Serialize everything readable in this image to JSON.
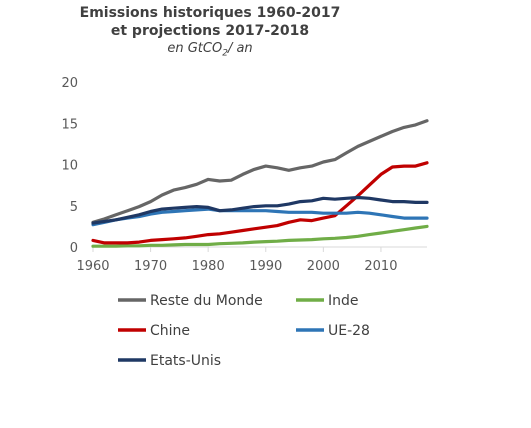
{
  "chart_data": {
    "type": "line",
    "title_line1": "Emissions historiques 1960-2017",
    "title_line2": "et projections 2017-2018",
    "subtitle_prefix": "en GtCO",
    "subtitle_sub": "2",
    "subtitle_suffix": "/ an",
    "xlim": [
      1960,
      2018
    ],
    "ylim": [
      0,
      20
    ],
    "xticks": [
      "1960",
      "1970",
      "1980",
      "1990",
      "2000",
      "2010"
    ],
    "yticks": [
      "0",
      "5",
      "10",
      "15",
      "20"
    ],
    "grid": false,
    "legend_position": "bottom",
    "x": [
      1960,
      1962,
      1964,
      1966,
      1968,
      1970,
      1972,
      1974,
      1976,
      1978,
      1980,
      1982,
      1984,
      1986,
      1988,
      1990,
      1992,
      1994,
      1996,
      1998,
      2000,
      2002,
      2004,
      2006,
      2008,
      2010,
      2012,
      2014,
      2016,
      2018
    ],
    "series": [
      {
        "name": "Reste du Monde",
        "color": "#666666",
        "values": [
          3.0,
          3.4,
          3.9,
          4.4,
          4.9,
          5.5,
          6.3,
          6.9,
          7.2,
          7.6,
          8.2,
          8.0,
          8.1,
          8.8,
          9.4,
          9.8,
          9.6,
          9.3,
          9.6,
          9.8,
          10.3,
          10.6,
          11.4,
          12.2,
          12.8,
          13.4,
          14.0,
          14.5,
          14.8,
          15.3
        ]
      },
      {
        "name": "Inde",
        "color": "#70AD47",
        "values": [
          0.1,
          0.1,
          0.1,
          0.15,
          0.15,
          0.2,
          0.2,
          0.25,
          0.3,
          0.3,
          0.3,
          0.4,
          0.45,
          0.5,
          0.6,
          0.65,
          0.7,
          0.8,
          0.85,
          0.9,
          1.0,
          1.05,
          1.15,
          1.3,
          1.5,
          1.7,
          1.9,
          2.1,
          2.3,
          2.5
        ]
      },
      {
        "name": "Chine",
        "color": "#C00000",
        "values": [
          0.8,
          0.5,
          0.5,
          0.5,
          0.6,
          0.8,
          0.9,
          1.0,
          1.1,
          1.3,
          1.5,
          1.6,
          1.8,
          2.0,
          2.2,
          2.4,
          2.6,
          3.0,
          3.3,
          3.2,
          3.5,
          3.8,
          5.0,
          6.2,
          7.5,
          8.8,
          9.7,
          9.8,
          9.8,
          10.2
        ]
      },
      {
        "name": "UE-28",
        "color": "#2E75B6",
        "values": [
          2.7,
          3.0,
          3.3,
          3.5,
          3.7,
          4.0,
          4.2,
          4.3,
          4.4,
          4.5,
          4.6,
          4.4,
          4.4,
          4.4,
          4.4,
          4.4,
          4.3,
          4.2,
          4.2,
          4.2,
          4.1,
          4.1,
          4.1,
          4.2,
          4.1,
          3.9,
          3.7,
          3.5,
          3.5,
          3.5
        ]
      },
      {
        "name": "Etats-Unis",
        "color": "#1F3864",
        "values": [
          2.9,
          3.1,
          3.3,
          3.6,
          3.9,
          4.3,
          4.6,
          4.7,
          4.8,
          4.9,
          4.8,
          4.4,
          4.5,
          4.7,
          4.9,
          5.0,
          5.0,
          5.2,
          5.5,
          5.6,
          5.9,
          5.8,
          5.9,
          6.0,
          5.9,
          5.7,
          5.5,
          5.5,
          5.4,
          5.4
        ]
      }
    ],
    "legend_order": [
      0,
      1,
      2,
      3,
      4
    ]
  }
}
